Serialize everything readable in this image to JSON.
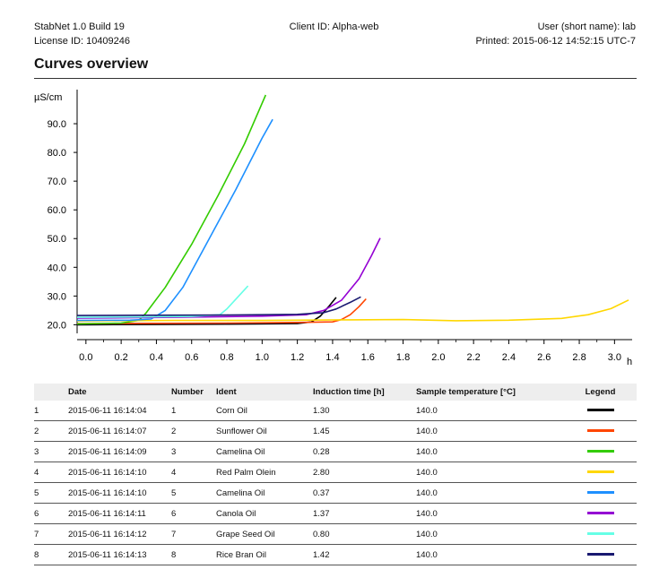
{
  "header": {
    "app": "StabNet 1.0 Build 19",
    "license": "License ID: 10409246",
    "client": "Client ID: Alpha-web",
    "user": "User (short name): lab",
    "printed": "Printed: 2015-06-12 14:52:15 UTC-7"
  },
  "page_title": "Curves overview",
  "chart_data": {
    "type": "line",
    "title": "",
    "xlabel": "h",
    "ylabel": "µS/cm",
    "xlim": [
      -0.05,
      3.1
    ],
    "ylim": [
      17,
      100
    ],
    "xticks": [
      "0.0",
      "0.2",
      "0.4",
      "0.6",
      "0.8",
      "1.0",
      "1.2",
      "1.4",
      "1.6",
      "1.8",
      "2.0",
      "2.2",
      "2.4",
      "2.6",
      "2.8",
      "3.0"
    ],
    "xtick_values": [
      0.0,
      0.2,
      0.4,
      0.6,
      0.8,
      1.0,
      1.2,
      1.4,
      1.6,
      1.8,
      2.0,
      2.2,
      2.4,
      2.6,
      2.8,
      3.0
    ],
    "yticks": [
      "20.0",
      "30.0",
      "40.0",
      "50.0",
      "60.0",
      "70.0",
      "80.0",
      "90.0"
    ],
    "ytick_values": [
      20,
      30,
      40,
      50,
      60,
      70,
      80,
      90
    ],
    "grid": false,
    "series": [
      {
        "color": "#000000",
        "x": [
          -0.05,
          0.4,
          0.8,
          1.2,
          1.28,
          1.33,
          1.38,
          1.42
        ],
        "y": [
          20.0,
          20.1,
          20.2,
          20.4,
          21.0,
          23.0,
          26.5,
          29.5
        ]
      },
      {
        "color": "#ff4500",
        "x": [
          -0.05,
          0.4,
          0.8,
          1.2,
          1.4,
          1.45,
          1.5,
          1.55,
          1.59
        ],
        "y": [
          20.4,
          20.5,
          20.6,
          20.8,
          21.0,
          21.8,
          23.5,
          26.3,
          29.0
        ]
      },
      {
        "color": "#33cc00",
        "x": [
          -0.05,
          0.2,
          0.3,
          0.34,
          0.45,
          0.6,
          0.75,
          0.9,
          1.02
        ],
        "y": [
          20.3,
          20.6,
          21.5,
          24.0,
          33.0,
          48.0,
          65.0,
          83.0,
          100.0
        ]
      },
      {
        "color": "#ffd700",
        "x": [
          -0.05,
          0.5,
          1.0,
          1.5,
          1.8,
          2.1,
          2.4,
          2.7,
          2.85,
          2.98,
          3.08
        ],
        "y": [
          21.3,
          21.5,
          21.5,
          21.7,
          21.8,
          21.4,
          21.6,
          22.2,
          23.5,
          25.6,
          28.6
        ]
      },
      {
        "color": "#1e90ff",
        "x": [
          -0.05,
          0.25,
          0.37,
          0.45,
          0.55,
          0.7,
          0.85,
          1.0,
          1.06
        ],
        "y": [
          21.5,
          21.6,
          22.0,
          25.0,
          33.0,
          50.0,
          67.0,
          85.0,
          91.5
        ]
      },
      {
        "color": "#9400d3",
        "x": [
          -0.05,
          0.5,
          1.0,
          1.25,
          1.35,
          1.45,
          1.55,
          1.62,
          1.67
        ],
        "y": [
          22.3,
          22.6,
          23.0,
          23.5,
          25.0,
          28.5,
          36.0,
          44.0,
          50.2
        ]
      },
      {
        "color": "#66ffe6",
        "x": [
          -0.05,
          0.3,
          0.6,
          0.76,
          0.8,
          0.86,
          0.92
        ],
        "y": [
          22.6,
          22.7,
          22.9,
          23.5,
          25.5,
          29.5,
          33.5
        ]
      },
      {
        "color": "#191970",
        "x": [
          -0.05,
          0.3,
          0.8,
          1.2,
          1.35,
          1.42,
          1.5,
          1.56
        ],
        "y": [
          23.2,
          23.3,
          23.4,
          23.6,
          24.2,
          25.5,
          27.8,
          29.7
        ]
      }
    ]
  },
  "table": {
    "headers": {
      "idx": "",
      "date": "Date",
      "number": "Number",
      "ident": "Ident",
      "induction": "Induction time [h]",
      "temperature": "Sample temperature [°C]",
      "legend": "Legend"
    },
    "rows": [
      {
        "idx": "1",
        "date": "2015-06-11 16:14:04",
        "number": "1",
        "ident": "Corn Oil",
        "induction": "1.30",
        "temperature": "140.0",
        "color": "#000000"
      },
      {
        "idx": "2",
        "date": "2015-06-11 16:14:07",
        "number": "2",
        "ident": "Sunflower Oil",
        "induction": "1.45",
        "temperature": "140.0",
        "color": "#ff4500"
      },
      {
        "idx": "3",
        "date": "2015-06-11 16:14:09",
        "number": "3",
        "ident": "Camelina Oil",
        "induction": "0.28",
        "temperature": "140.0",
        "color": "#33cc00"
      },
      {
        "idx": "4",
        "date": "2015-06-11 16:14:10",
        "number": "4",
        "ident": "Red Palm Olein",
        "induction": "2.80",
        "temperature": "140.0",
        "color": "#ffd700"
      },
      {
        "idx": "5",
        "date": "2015-06-11 16:14:10",
        "number": "5",
        "ident": "Camelina Oil",
        "induction": "0.37",
        "temperature": "140.0",
        "color": "#1e90ff"
      },
      {
        "idx": "6",
        "date": "2015-06-11 16:14:11",
        "number": "6",
        "ident": "Canola Oil",
        "induction": "1.37",
        "temperature": "140.0",
        "color": "#9400d3"
      },
      {
        "idx": "7",
        "date": "2015-06-11 16:14:12",
        "number": "7",
        "ident": "Grape Seed Oil",
        "induction": "0.80",
        "temperature": "140.0",
        "color": "#66ffe6"
      },
      {
        "idx": "8",
        "date": "2015-06-11 16:14:13",
        "number": "8",
        "ident": "Rice Bran Oil",
        "induction": "1.42",
        "temperature": "140.0",
        "color": "#191970"
      }
    ]
  }
}
